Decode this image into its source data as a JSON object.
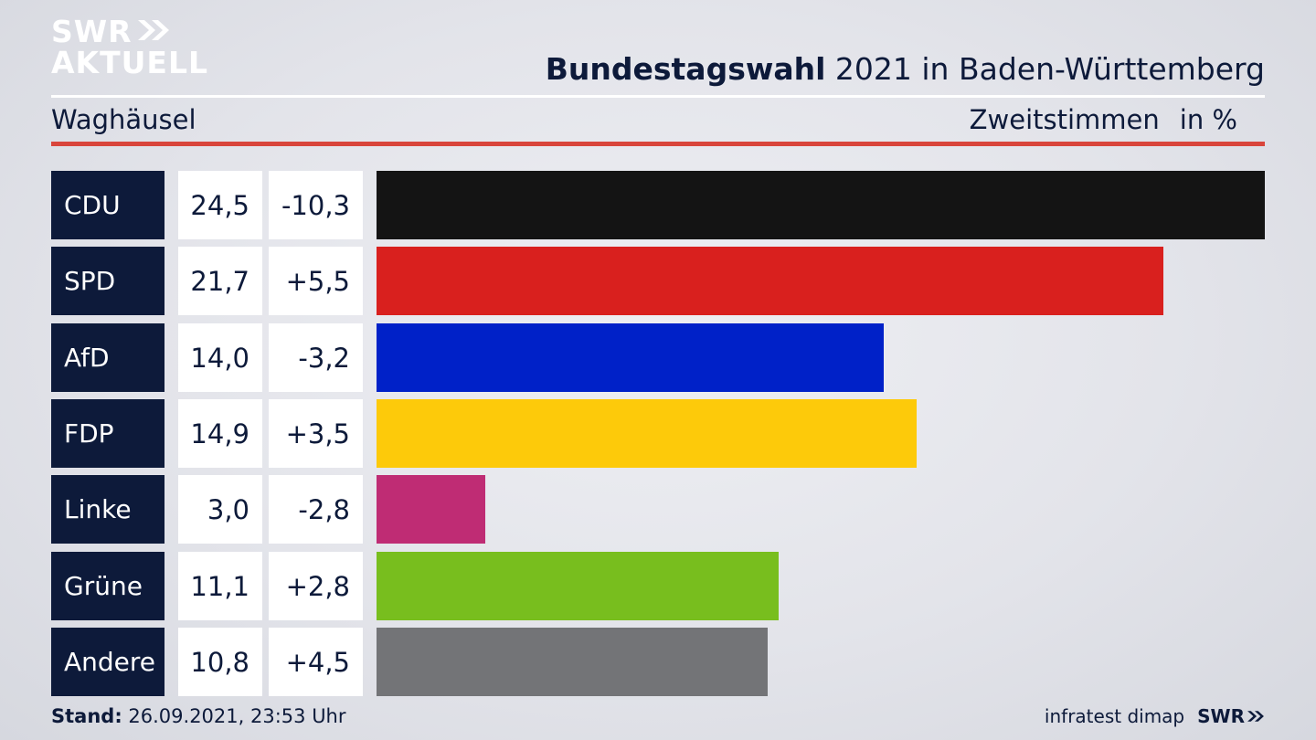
{
  "branding": {
    "logo_line1": "SWR",
    "logo_line2": "AKTUELL",
    "footer_source": "infratest dimap",
    "footer_logo": "SWR"
  },
  "header": {
    "title_bold": "Bundestagswahl",
    "title_rest": "2021 in Baden-Württemberg",
    "location": "Waghäusel",
    "measure": "Zweitstimmen",
    "unit": "in %"
  },
  "footer": {
    "stand_label": "Stand:",
    "stand_value": "26.09.2021, 23:53 Uhr"
  },
  "chart_data": {
    "type": "bar",
    "orientation": "horizontal",
    "categories": [
      "CDU",
      "SPD",
      "AfD",
      "FDP",
      "Linke",
      "Grüne",
      "Andere"
    ],
    "values": [
      24.5,
      21.7,
      14.0,
      14.9,
      3.0,
      11.1,
      10.8
    ],
    "value_labels": [
      "24,5",
      "21,7",
      "14,0",
      "14,9",
      "3,0",
      "11,1",
      "10,8"
    ],
    "changes": [
      -10.3,
      5.5,
      -3.2,
      3.5,
      -2.8,
      2.8,
      4.5
    ],
    "change_labels": [
      "-10,3",
      "+5,5",
      "-3,2",
      "+3,5",
      "-2,8",
      "+2,8",
      "+4,5"
    ],
    "colors": [
      "#141414",
      "#d9201e",
      "#0021c8",
      "#fdca0a",
      "#bf2c74",
      "#78be1e",
      "#737477"
    ]
  }
}
